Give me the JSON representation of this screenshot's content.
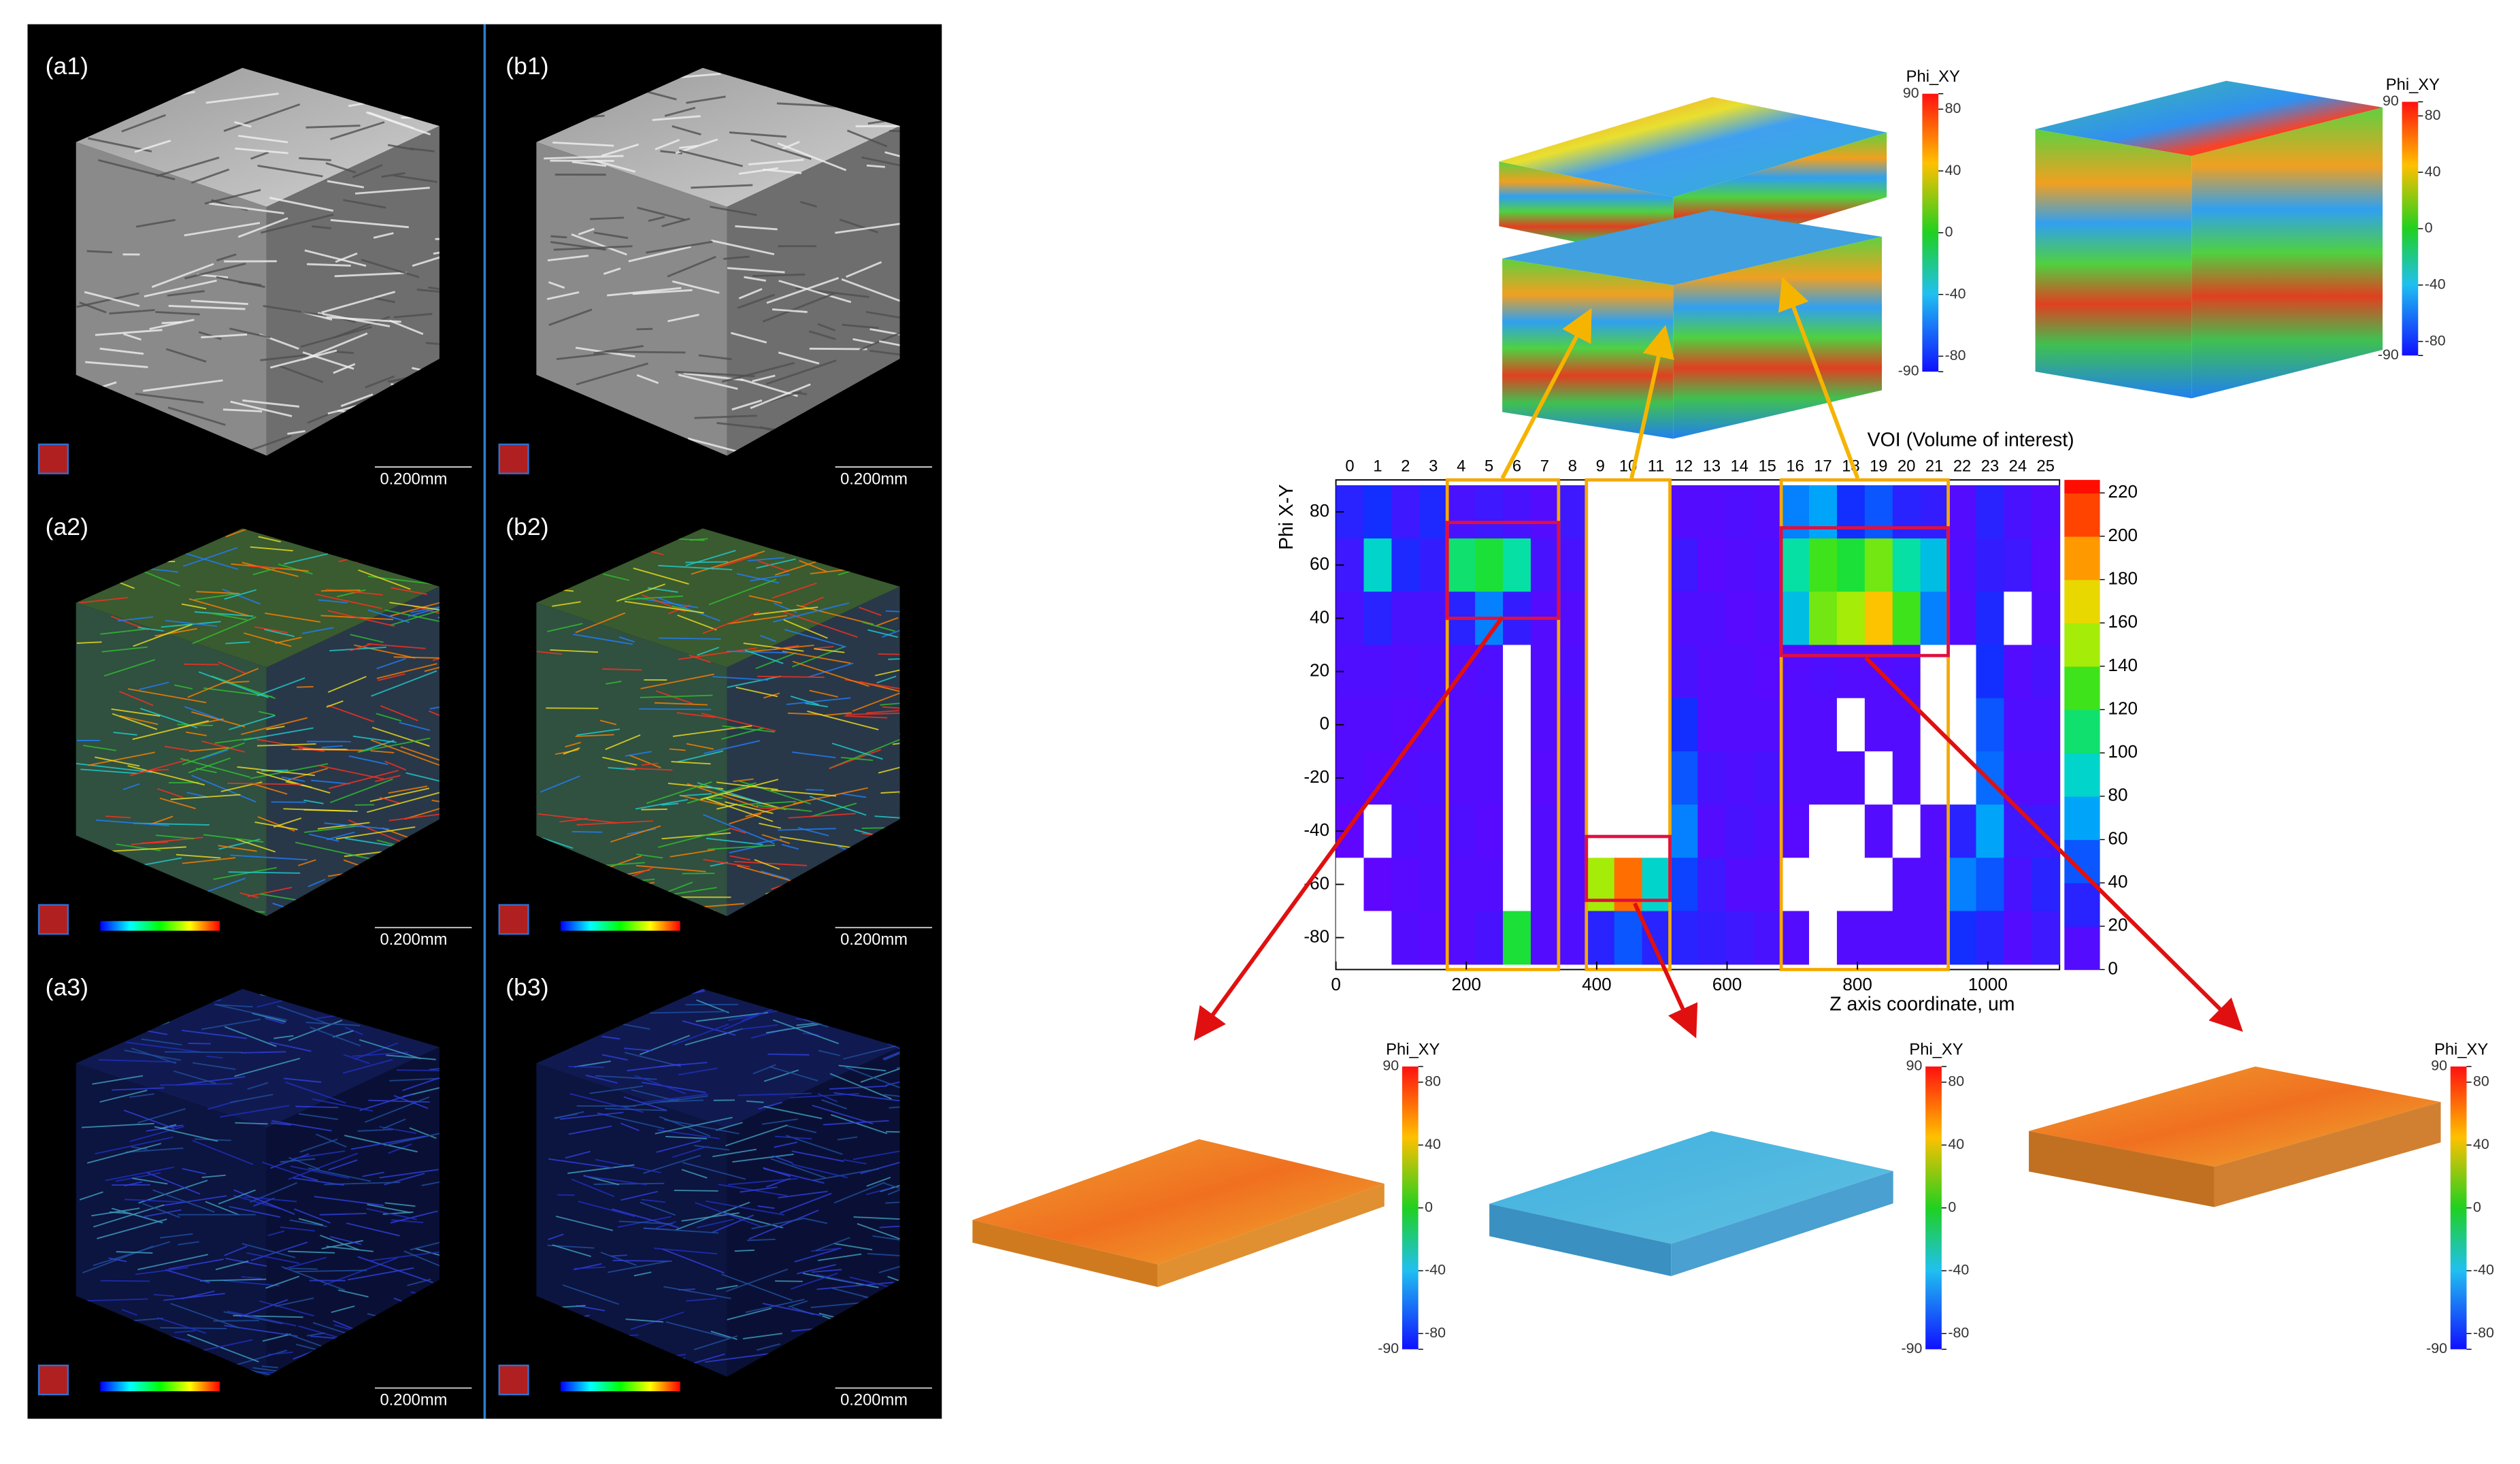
{
  "panels": {
    "labels": [
      "(a1)",
      "(b1)",
      "(a2)",
      "(b2)",
      "(a3)",
      "(b3)"
    ],
    "scale_bars": [
      "0.200mm",
      "0.200mm",
      "0.200mm",
      "0.200mm",
      "0.200mm",
      "0.200mm"
    ]
  },
  "chart_data": {
    "type": "heatmap",
    "title": "VOI (Volume of interest)",
    "categories": [
      "0",
      "1",
      "2",
      "3",
      "4",
      "5",
      "6",
      "7",
      "8",
      "9",
      "10",
      "11",
      "12",
      "13",
      "14",
      "15",
      "16",
      "17",
      "18",
      "19",
      "20",
      "21",
      "22",
      "23",
      "24",
      "25"
    ],
    "x_label": "Z axis coordinate, um",
    "y_label": "Phi X-Y",
    "xlim": [
      0,
      1110
    ],
    "xticks": [
      0,
      200,
      400,
      600,
      800,
      1000
    ],
    "ylim": [
      -92,
      92
    ],
    "yticks": [
      -80,
      -60,
      -40,
      -20,
      0,
      20,
      40,
      60,
      80
    ],
    "y_bins": [
      90,
      70,
      50,
      30,
      10,
      -10,
      -30,
      -50,
      -70,
      -90
    ],
    "values": [
      [
        30,
        20,
        15,
        12,
        10,
        10,
        5,
        0,
        0
      ],
      [
        40,
        90,
        30,
        12,
        10,
        8,
        0,
        5,
        0
      ],
      [
        20,
        35,
        15,
        10,
        8,
        10,
        12,
        8,
        10
      ],
      [
        35,
        25,
        15,
        12,
        10,
        12,
        10,
        10,
        8
      ],
      [
        15,
        110,
        30,
        10,
        10,
        10,
        12,
        10,
        10
      ],
      [
        20,
        120,
        60,
        12,
        10,
        10,
        8,
        10,
        15
      ],
      [
        15,
        100,
        25,
        0,
        0,
        0,
        0,
        0,
        120
      ],
      [
        10,
        15,
        10,
        10,
        10,
        8,
        10,
        10,
        10
      ],
      [
        20,
        15,
        10,
        12,
        10,
        10,
        10,
        10,
        12
      ],
      [
        0,
        0,
        0,
        0,
        0,
        0,
        0,
        150,
        30
      ],
      [
        0,
        0,
        0,
        0,
        0,
        0,
        0,
        200,
        50
      ],
      [
        0,
        0,
        0,
        0,
        0,
        0,
        0,
        90,
        30
      ],
      [
        10,
        20,
        12,
        15,
        40,
        50,
        60,
        45,
        30
      ],
      [
        10,
        8,
        12,
        10,
        10,
        15,
        10,
        20,
        25
      ],
      [
        12,
        10,
        8,
        10,
        10,
        12,
        15,
        10,
        20
      ],
      [
        10,
        12,
        10,
        8,
        10,
        15,
        12,
        10,
        15
      ],
      [
        60,
        100,
        80,
        10,
        10,
        10,
        8,
        0,
        10
      ],
      [
        70,
        130,
        140,
        12,
        10,
        10,
        0,
        0,
        0
      ],
      [
        40,
        120,
        150,
        10,
        0,
        10,
        0,
        0,
        10
      ],
      [
        50,
        140,
        180,
        10,
        10,
        0,
        10,
        0,
        10
      ],
      [
        30,
        100,
        130,
        12,
        10,
        10,
        0,
        10,
        10
      ],
      [
        25,
        80,
        60,
        0,
        0,
        0,
        10,
        10,
        10
      ],
      [
        10,
        12,
        10,
        0,
        0,
        0,
        30,
        60,
        40
      ],
      [
        30,
        25,
        35,
        40,
        50,
        55,
        70,
        50,
        30
      ],
      [
        15,
        20,
        0,
        10,
        12,
        10,
        20,
        15,
        10
      ],
      [
        10,
        8,
        10,
        15,
        12,
        10,
        20,
        30,
        20
      ]
    ],
    "colorbar": {
      "lim": [
        0,
        226
      ],
      "ticks": [
        0,
        20,
        40,
        60,
        80,
        100,
        120,
        140,
        160,
        180,
        200,
        220
      ]
    }
  },
  "colorbars": [
    {
      "title": "Phi_XY",
      "ticks": [
        90,
        80,
        40,
        0,
        -40,
        -80,
        -90
      ]
    },
    {
      "title": "Phi_XY",
      "ticks": [
        90,
        80,
        40,
        0,
        -40,
        -80,
        -90
      ]
    },
    {
      "title": "Phi_XY",
      "ticks": [
        90,
        80,
        40,
        0,
        -40,
        -80,
        -90
      ]
    },
    {
      "title": "Phi_XY",
      "ticks": [
        90,
        80,
        40,
        0,
        -40,
        -80,
        -90
      ]
    },
    {
      "title": "Phi_XY",
      "ticks": [
        90,
        80,
        40,
        0,
        -40,
        -80,
        -90
      ]
    }
  ]
}
